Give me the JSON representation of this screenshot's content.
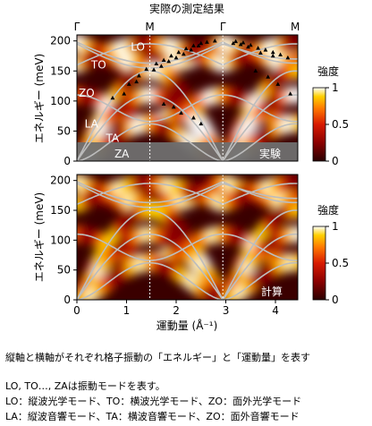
{
  "title": "実際の測定結果",
  "caption_main": "縦軸と横軸がそれぞれ格子振動の「エネルギー」と「運動量」を表す",
  "caption_lines": [
    "LO, TO…, ZAは振動モードを表す。",
    "LO：縦波光学モード、TO：横波光学モード、ZO：面外光学モード",
    "LA：縦波音響モード、TA：横波音響モード、ZO：面外音響モード"
  ],
  "colors": {
    "background_dark": "#3a0000",
    "colormap": [
      "#2a0000",
      "#8a0000",
      "#d81a00",
      "#ff7a00",
      "#ffd000",
      "#ffffff"
    ],
    "dispersion_curve": "#bdbdbd",
    "experiment_band": "#6f6f6f"
  },
  "chart_data": [
    {
      "type": "heatmap",
      "panel": "experiment",
      "ylabel": "エネルギー (meV)",
      "xlim": [
        0,
        4.45
      ],
      "ylim": [
        0,
        210
      ],
      "yticks": [
        0,
        50,
        100,
        150,
        200
      ],
      "high_symmetry_points": [
        {
          "label": "Γ",
          "x": 0
        },
        {
          "label": "M",
          "x": 1.47
        },
        {
          "label": "Γ",
          "x": 2.94
        },
        {
          "label": "M",
          "x": 4.4
        }
      ],
      "mode_labels": [
        "LO",
        "TO",
        "ZO",
        "LA",
        "TA",
        "ZA"
      ],
      "panel_label": "実験",
      "colorbar": {
        "title": "強度",
        "ticks": [
          0,
          0.5,
          1
        ],
        "range": [
          0,
          1
        ]
      },
      "measured_points": {
        "x": [
          0.72,
          1.05,
          1.25,
          1.4,
          1.6,
          1.75,
          1.9,
          2.05,
          2.2,
          2.35,
          2.5,
          2.62,
          2.78,
          3.2,
          3.35,
          3.5,
          3.65,
          3.8,
          3.95,
          4.1,
          4.25,
          0.95,
          1.2,
          1.55,
          1.7,
          1.85,
          2.0,
          2.15,
          2.3,
          2.45,
          3.15,
          3.3,
          3.45,
          3.7,
          3.95,
          1.75,
          1.95,
          2.1,
          2.35,
          2.5,
          3.6,
          3.85,
          4.05,
          4.3
        ],
        "y": [
          105,
          128,
          142,
          153,
          162,
          168,
          175,
          181,
          187,
          192,
          196,
          198,
          200,
          199,
          197,
          193,
          188,
          185,
          181,
          177,
          172,
          112,
          132,
          152,
          158,
          166,
          172,
          178,
          185,
          192,
          196,
          194,
          190,
          180,
          175,
          95,
          90,
          80,
          72,
          62,
          150,
          140,
          128,
          112
        ]
      }
    },
    {
      "type": "heatmap",
      "panel": "calculation",
      "xlabel": "運動量 (Å⁻¹)",
      "ylabel": "エネルギー (meV)",
      "xlim": [
        0,
        4.45
      ],
      "ylim": [
        0,
        210
      ],
      "xticks": [
        0,
        1,
        2,
        3,
        4
      ],
      "yticks": [
        0,
        50,
        100,
        150,
        200
      ],
      "panel_label": "計算",
      "colorbar": {
        "title": "強度",
        "ticks": [
          0,
          0.5,
          1
        ],
        "range": [
          0,
          1
        ]
      }
    }
  ]
}
